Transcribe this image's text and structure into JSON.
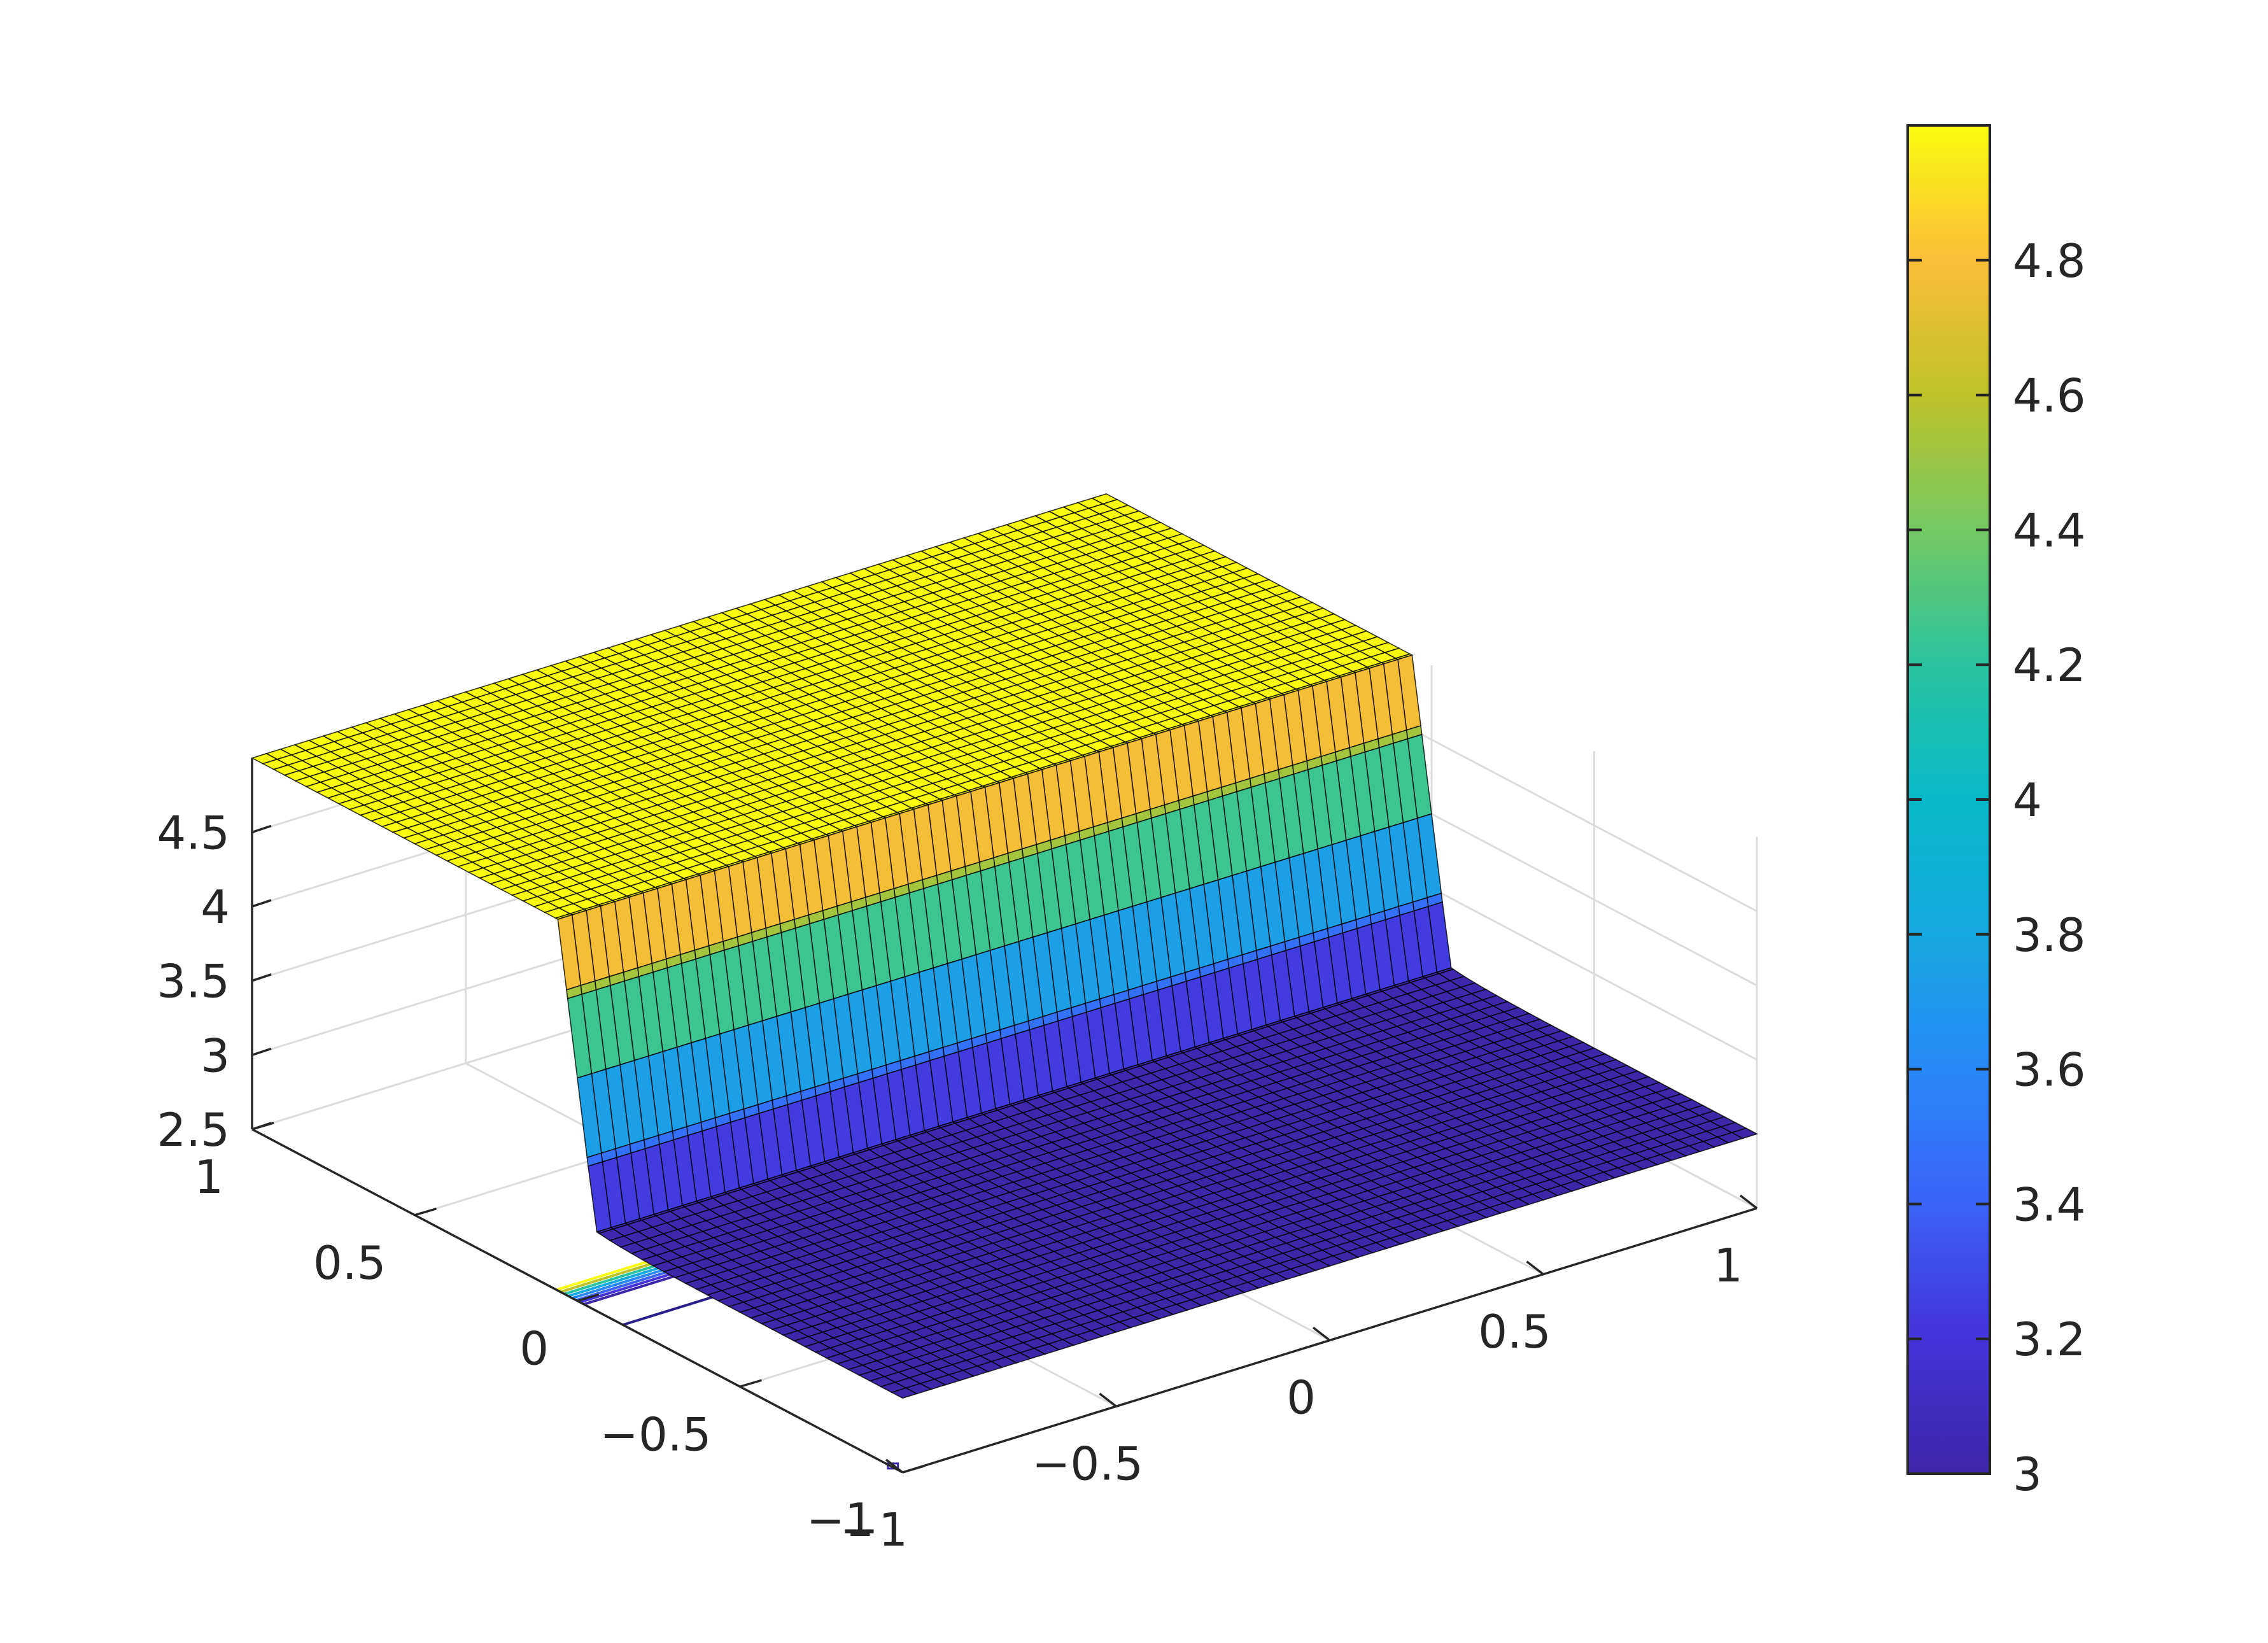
{
  "chart_data": {
    "type": "surface",
    "title": "",
    "xlabel": "",
    "ylabel": "",
    "zlabel": "",
    "grid": true,
    "colormap": "parula",
    "xlim": [
      -1,
      1
    ],
    "ylim": [
      -1,
      1
    ],
    "zlim": [
      2.5,
      5
    ],
    "clim": [
      3,
      5
    ],
    "x_ticks": [
      "−1",
      "−0.5",
      "0",
      "0.5",
      "1"
    ],
    "y_ticks": [
      "−1",
      "−0.5",
      "0",
      "0.5",
      "1"
    ],
    "z_ticks": [
      "2.5",
      "3",
      "3.5",
      "4",
      "4.5"
    ],
    "colorbar": {
      "location": "right",
      "ticks": [
        3,
        3.2,
        3.4,
        3.6,
        3.8,
        4,
        4.2,
        4.4,
        4.6,
        4.8
      ],
      "tick_labels": [
        "3",
        "3.2",
        "3.4",
        "3.6",
        "3.8",
        "4",
        "4.2",
        "4.4",
        "4.6",
        "4.8"
      ]
    },
    "surface": {
      "description_low_value": 3.0,
      "description_high_value": 5.0,
      "step_location_y": 0,
      "low_region": "y < 0",
      "high_region": "y > 0",
      "grid_resolution": 60
    },
    "contour_at_base": true,
    "colors": {
      "low": "#3e26a8",
      "high": "#f9fb0e",
      "edge": "#000000"
    }
  }
}
